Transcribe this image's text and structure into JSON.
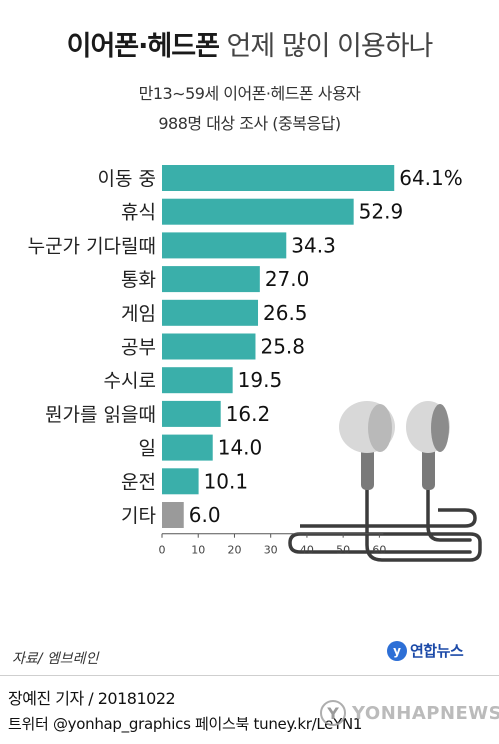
{
  "header": {
    "title_bold": "이어폰·헤드폰",
    "title_light": "언제 많이 이용하나",
    "subtitle_line1": "만13∼59세 이어폰·헤드폰 사용자",
    "subtitle_line2": "988명 대상 조사 (중복응답)"
  },
  "chart_data": {
    "type": "bar",
    "orientation": "horizontal",
    "categories": [
      "이동 중",
      "휴식",
      "누군가 기다릴때",
      "통화",
      "게임",
      "공부",
      "수시로",
      "뭔가를 읽을때",
      "일",
      "운전",
      "기타"
    ],
    "values": [
      64.1,
      52.9,
      34.3,
      27.0,
      26.5,
      25.8,
      19.5,
      16.2,
      14.0,
      10.1,
      6.0
    ],
    "value_labels": [
      "64.1%",
      "52.9",
      "34.3",
      "27.0",
      "26.5",
      "25.8",
      "19.5",
      "16.2",
      "14.0",
      "10.1",
      "6.0"
    ],
    "bar_colors": [
      "#3aafaa",
      "#3aafaa",
      "#3aafaa",
      "#3aafaa",
      "#3aafaa",
      "#3aafaa",
      "#3aafaa",
      "#3aafaa",
      "#3aafaa",
      "#3aafaa",
      "#9a9a9a"
    ],
    "xlim": [
      0,
      65
    ],
    "xticks": [
      "0",
      "10",
      "20",
      "30",
      "40",
      "50",
      "60"
    ],
    "xtick_values": [
      0,
      10,
      20,
      30,
      40,
      50,
      60
    ],
    "grid": false,
    "legend": "none",
    "illustration": "earphones-icon"
  },
  "footer": {
    "source": "자료/ 엠브레인",
    "logo_mark": "y",
    "logo_text": "연합뉴스",
    "credit": "장예진 기자 / 20181022",
    "social": "트위터 @yonhap_graphics  페이스북 tuney.kr/LeYN1",
    "watermark_mark": "Y",
    "watermark_text": "YONHAPNEWS"
  },
  "colors": {
    "bar": "#3aafaa",
    "bar_other": "#9a9a9a",
    "earphone_body": "#d8d8d8",
    "earphone_stem": "#7a7a7a",
    "cable": "#3c3c3c"
  }
}
